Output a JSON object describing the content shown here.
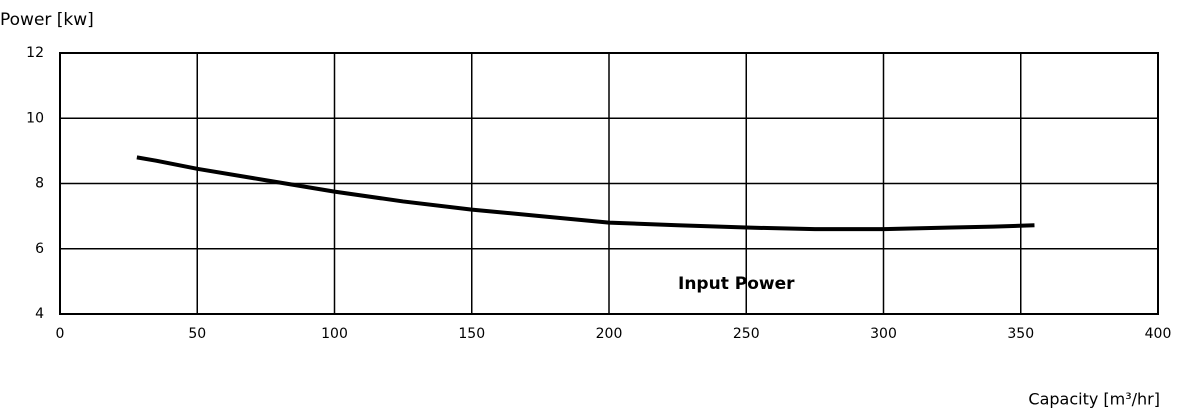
{
  "chart_data": {
    "type": "line",
    "title": "Power [kw]",
    "xlabel": "Capacity [m³/hr]",
    "annotation": "Input Power",
    "x": [
      28,
      35,
      50,
      75,
      100,
      125,
      150,
      175,
      200,
      225,
      250,
      275,
      300,
      325,
      340,
      355
    ],
    "series": [
      {
        "name": "Input Power",
        "color": "#000000",
        "values": [
          8.8,
          8.7,
          8.45,
          8.1,
          7.75,
          7.45,
          7.2,
          7.0,
          6.8,
          6.72,
          6.65,
          6.6,
          6.6,
          6.65,
          6.68,
          6.72
        ]
      }
    ],
    "xlim": [
      0,
      400
    ],
    "xticks": [
      0,
      50,
      100,
      150,
      200,
      250,
      300,
      350,
      400
    ],
    "ylim": [
      4,
      12
    ],
    "yticks": [
      4,
      6,
      8,
      10,
      12
    ],
    "grid": true
  }
}
